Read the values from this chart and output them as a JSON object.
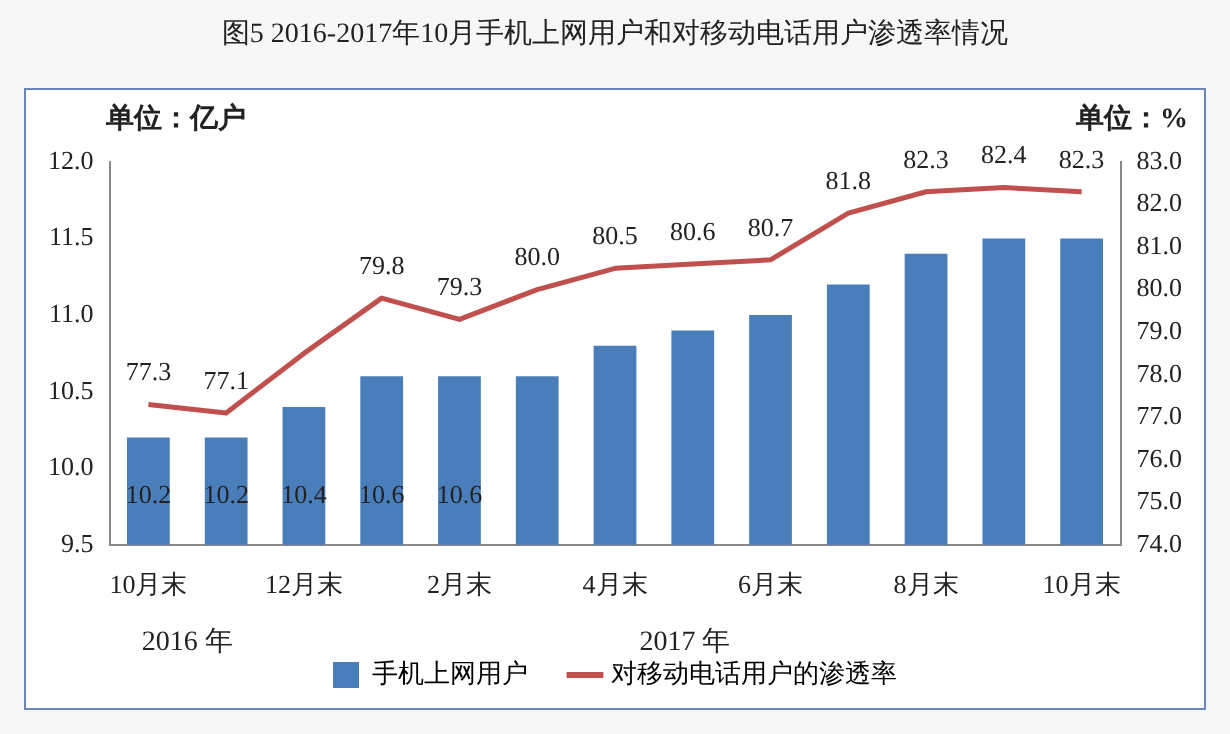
{
  "chart_data": {
    "type": "bar",
    "title": "图5 2016-2017年10月手机上网用户和对移动电话用户渗透率情况",
    "categories": [
      "10月末",
      null,
      "12月末",
      null,
      "2月末",
      null,
      "4月末",
      null,
      "6月末",
      null,
      "8月末",
      null,
      "10月末"
    ],
    "series": [
      {
        "name": "手机上网用户",
        "color": "#4a7ebb",
        "values": [
          10.2,
          10.2,
          10.4,
          10.6,
          10.6,
          10.6,
          10.8,
          10.9,
          11.0,
          11.2,
          11.4,
          11.5,
          11.5
        ],
        "value_labels": [
          "10.2",
          "10.2",
          "10.4",
          "10.6",
          "10.6",
          null,
          null,
          null,
          null,
          null,
          null,
          null,
          null
        ]
      },
      {
        "name": "对移动电话用户的渗透率",
        "type": "line",
        "axis": "y2",
        "color": "#c0504d",
        "values": [
          77.3,
          77.1,
          78.5,
          79.8,
          79.3,
          80.0,
          80.5,
          80.6,
          80.7,
          81.8,
          82.3,
          82.4,
          82.3
        ],
        "value_labels": [
          "77.3",
          "77.1",
          null,
          "79.8",
          "79.3",
          "80.0",
          "80.5",
          "80.6",
          "80.7",
          "81.8",
          "82.3",
          "82.4",
          "82.3"
        ]
      }
    ],
    "ylim": [
      9.5,
      12.0
    ],
    "yticks": [
      9.5,
      {
        "value": 10,
        "label": "10.0"
      },
      10.5,
      {
        "value": 11,
        "label": "11.0"
      },
      11.5,
      {
        "value": 12,
        "label": "12.0"
      }
    ],
    "y2lim": [
      74,
      83
    ],
    "y2ticks": [
      {
        "value": 74,
        "label": "74.0"
      },
      {
        "value": 75,
        "label": "75.0"
      },
      {
        "value": 76,
        "label": "76.0"
      },
      {
        "value": 77,
        "label": "77.0"
      },
      {
        "value": 78,
        "label": "78.0"
      },
      {
        "value": 79,
        "label": "79.0"
      },
      {
        "value": 80,
        "label": "80.0"
      },
      {
        "value": 81,
        "label": "81.0"
      },
      {
        "value": 82,
        "label": "82.0"
      },
      {
        "value": 83,
        "label": "83.0"
      }
    ],
    "annotations": [
      "单位：亿户",
      "单位：%",
      "2016 年",
      "2017 年"
    ],
    "grid": false,
    "legend": "bottom",
    "marker": "none"
  }
}
